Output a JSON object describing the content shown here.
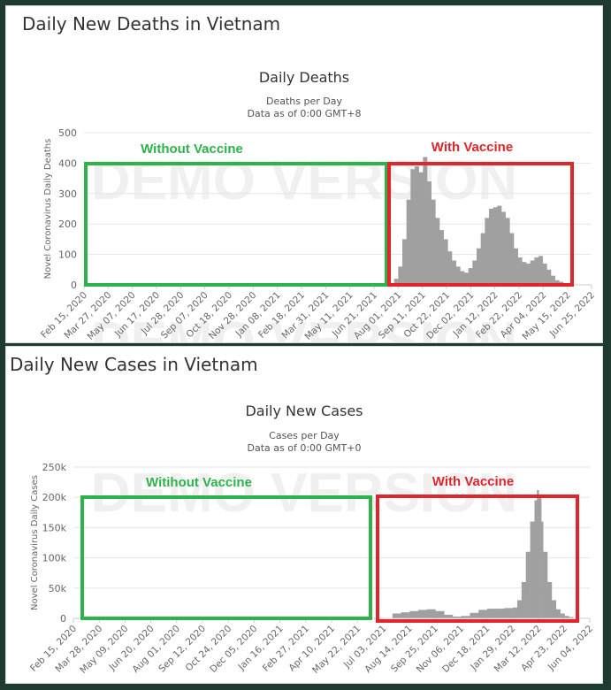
{
  "panels": [
    {
      "heading": "Daily New Deaths in Vietnam",
      "chart_data": {
        "type": "bar",
        "title": "Daily Deaths",
        "subtitle": "Deaths per Day",
        "subtitle2": "Data as of 0:00 GMT+8",
        "ylabel": "Novel Coronavirus Daily Deaths",
        "xlabel": "",
        "ylim": [
          0,
          500
        ],
        "yticks": [
          "0",
          "100",
          "200",
          "300",
          "400",
          "500"
        ],
        "xticks": [
          "Feb 15, 2020",
          "Mar 27, 2020",
          "May 07, 2020",
          "Jun 17, 2020",
          "Jul 28, 2020",
          "Sep 07, 2020",
          "Oct 18, 2020",
          "Nov 28, 2020",
          "Jan 08, 2021",
          "Feb 18, 2021",
          "Mar 31, 2021",
          "May 11, 2021",
          "Jun 21, 2021",
          "Aug 01, 2021",
          "Sep 11, 2021",
          "Oct 22, 2021",
          "Dec 02, 2021",
          "Jan 12, 2022",
          "Feb 22, 2022",
          "Apr 04, 2022",
          "May 15, 2022",
          "Jun 25, 2022"
        ],
        "grid": true,
        "series": [
          {
            "color": "#a0a0a0",
            "x": [
              "Jul 25, 2021",
              "Aug 01, 2021",
              "Aug 08, 2021",
              "Aug 15, 2021",
              "Aug 22, 2021",
              "Aug 29, 2021",
              "Sep 05, 2021",
              "Sep 12, 2021",
              "Sep 19, 2021",
              "Sep 26, 2021",
              "Oct 03, 2021",
              "Oct 10, 2021",
              "Oct 17, 2021",
              "Oct 24, 2021",
              "Oct 31, 2021",
              "Nov 07, 2021",
              "Nov 14, 2021",
              "Nov 21, 2021",
              "Nov 28, 2021",
              "Dec 05, 2021",
              "Dec 12, 2021",
              "Dec 19, 2021",
              "Dec 26, 2021",
              "Jan 02, 2022",
              "Jan 09, 2022",
              "Jan 16, 2022",
              "Jan 23, 2022",
              "Jan 30, 2022",
              "Feb 06, 2022",
              "Feb 13, 2022",
              "Feb 20, 2022",
              "Feb 27, 2022",
              "Mar 06, 2022",
              "Mar 13, 2022",
              "Mar 20, 2022",
              "Mar 27, 2022",
              "Apr 03, 2022",
              "Apr 10, 2022",
              "Apr 17, 2022",
              "Apr 24, 2022",
              "May 01, 2022",
              "May 08, 2022"
            ],
            "values": [
              20,
              60,
              150,
              280,
              380,
              390,
              370,
              420,
              340,
              280,
              220,
              180,
              150,
              110,
              80,
              60,
              45,
              40,
              55,
              80,
              120,
              170,
              220,
              250,
              255,
              260,
              240,
              220,
              170,
              120,
              90,
              75,
              70,
              80,
              90,
              95,
              70,
              50,
              30,
              15,
              10,
              5
            ]
          }
        ],
        "annotations": [
          {
            "text": "Without Vaccine",
            "color": "#2db34a"
          },
          {
            "text": "With Vaccine",
            "color": "#e0252b"
          }
        ],
        "watermark": "DEMO VERSION"
      }
    },
    {
      "heading": "Daily New Cases in Vietnam",
      "chart_data": {
        "type": "bar",
        "title": "Daily New Cases",
        "subtitle": "Cases per Day",
        "subtitle2": "Data as of 0:00 GMT+0",
        "ylabel": "Novel Coronavirus Daily Cases",
        "xlabel": "",
        "ylim": [
          0,
          250000
        ],
        "yticks": [
          "0",
          "50k",
          "100k",
          "150k",
          "200k",
          "250k"
        ],
        "xticks": [
          "Feb 15, 2020",
          "Mar 28, 2020",
          "May 09, 2020",
          "Jun 20, 2020",
          "Aug 01, 2020",
          "Sep 12, 2020",
          "Oct 24, 2020",
          "Dec 05, 2020",
          "Jan 16, 2021",
          "Feb 27, 2021",
          "Apr 10, 2021",
          "May 22, 2021",
          "Jul 03, 2021",
          "Aug 14, 2021",
          "Sep 25, 2021",
          "Nov 06, 2021",
          "Dec 18, 2021",
          "Jan 29, 2022",
          "Mar 12, 2022",
          "Apr 23, 2022",
          "Jun 04, 2022"
        ],
        "grid": true,
        "series": [
          {
            "color": "#a0a0a0",
            "x": [
              "Jul 18, 2021",
              "Aug 01, 2021",
              "Aug 15, 2021",
              "Aug 29, 2021",
              "Sep 12, 2021",
              "Sep 26, 2021",
              "Oct 10, 2021",
              "Oct 24, 2021",
              "Nov 07, 2021",
              "Nov 21, 2021",
              "Dec 05, 2021",
              "Dec 19, 2021",
              "Jan 02, 2022",
              "Jan 16, 2022",
              "Jan 30, 2022",
              "Feb 06, 2022",
              "Feb 13, 2022",
              "Feb 20, 2022",
              "Feb 27, 2022",
              "Mar 06, 2022",
              "Mar 10, 2022",
              "Mar 13, 2022",
              "Mar 17, 2022",
              "Mar 20, 2022",
              "Mar 27, 2022",
              "Apr 03, 2022",
              "Apr 10, 2022",
              "Apr 17, 2022",
              "Apr 24, 2022",
              "May 01, 2022"
            ],
            "values": [
              8000,
              10000,
              12000,
              14000,
              15000,
              12000,
              6000,
              3000,
              4000,
              9000,
              14000,
              16000,
              16000,
              17000,
              18000,
              30000,
              60000,
              110000,
              160000,
              195000,
              212000,
              200000,
              160000,
              110000,
              60000,
              30000,
              15000,
              8000,
              4000,
              2000
            ]
          }
        ],
        "annotations": [
          {
            "text": "Witihout Vaccine",
            "color": "#2db34a"
          },
          {
            "text": "With Vaccine",
            "color": "#e0252b"
          }
        ],
        "watermark": "DEMO VERSION"
      }
    }
  ]
}
